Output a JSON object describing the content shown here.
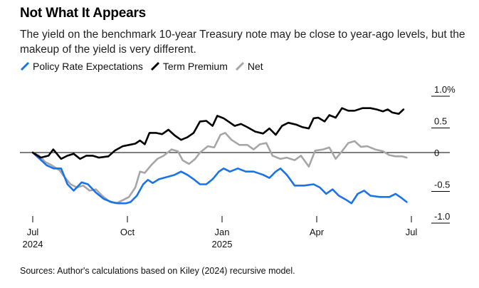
{
  "title": "Not What It Appears",
  "subtitle": "The yield on the benchmark 10-year Treasury note may be close to year-ago levels, but the makeup of the yield is very different.",
  "source": "Sources: Author's calculations based on Kiley (2024) recursive model.",
  "colors": {
    "policy": "#1a73e8",
    "term": "#000000",
    "net": "#a6a6a6"
  },
  "chart_data": {
    "type": "line",
    "x_unit": "month index (0 = Jul 2024)",
    "ylim": [
      -1.1,
      1.1
    ],
    "y_ticks": [
      {
        "value": 1.0,
        "label": "1.0%"
      },
      {
        "value": 0.5,
        "label": "0.5"
      },
      {
        "value": 0,
        "label": "0"
      },
      {
        "value": -0.5,
        "label": "-0.5"
      },
      {
        "value": -1.0,
        "label": "-1.0"
      }
    ],
    "x_ticks": [
      {
        "value": 0,
        "label": "Jul",
        "sublabel": "2024"
      },
      {
        "value": 3,
        "label": "Oct",
        "sublabel": ""
      },
      {
        "value": 6,
        "label": "Jan",
        "sublabel": "2025"
      },
      {
        "value": 9,
        "label": "Apr",
        "sublabel": ""
      },
      {
        "value": 12,
        "label": "Jul",
        "sublabel": ""
      }
    ],
    "legend_position": "top-left",
    "series": [
      {
        "name": "Policy Rate Expectations",
        "color_key": "policy",
        "points": [
          [
            0,
            0
          ],
          [
            0.22,
            -0.1
          ],
          [
            0.44,
            -0.2
          ],
          [
            0.66,
            -0.25
          ],
          [
            0.9,
            -0.25
          ],
          [
            1.1,
            -0.5
          ],
          [
            1.3,
            -0.6
          ],
          [
            1.55,
            -0.47
          ],
          [
            1.75,
            -0.5
          ],
          [
            2.0,
            -0.63
          ],
          [
            2.25,
            -0.73
          ],
          [
            2.5,
            -0.78
          ],
          [
            2.7,
            -0.8
          ],
          [
            2.95,
            -0.8
          ],
          [
            3.1,
            -0.78
          ],
          [
            3.3,
            -0.68
          ],
          [
            3.5,
            -0.5
          ],
          [
            3.65,
            -0.43
          ],
          [
            3.8,
            -0.48
          ],
          [
            4.0,
            -0.42
          ],
          [
            4.3,
            -0.38
          ],
          [
            4.5,
            -0.35
          ],
          [
            4.7,
            -0.3
          ],
          [
            4.9,
            -0.35
          ],
          [
            5.1,
            -0.42
          ],
          [
            5.3,
            -0.5
          ],
          [
            5.5,
            -0.5
          ],
          [
            5.7,
            -0.42
          ],
          [
            5.9,
            -0.3
          ],
          [
            6.05,
            -0.25
          ],
          [
            6.25,
            -0.3
          ],
          [
            6.5,
            -0.25
          ],
          [
            6.75,
            -0.3
          ],
          [
            7.0,
            -0.3
          ],
          [
            7.3,
            -0.35
          ],
          [
            7.5,
            -0.4
          ],
          [
            7.7,
            -0.3
          ],
          [
            7.85,
            -0.25
          ],
          [
            8.05,
            -0.35
          ],
          [
            8.3,
            -0.52
          ],
          [
            8.6,
            -0.52
          ],
          [
            8.9,
            -0.5
          ],
          [
            9.1,
            -0.55
          ],
          [
            9.3,
            -0.65
          ],
          [
            9.5,
            -0.58
          ],
          [
            9.7,
            -0.68
          ],
          [
            9.95,
            -0.75
          ],
          [
            10.1,
            -0.8
          ],
          [
            10.3,
            -0.65
          ],
          [
            10.5,
            -0.6
          ],
          [
            10.7,
            -0.68
          ],
          [
            11.0,
            -0.7
          ],
          [
            11.3,
            -0.7
          ],
          [
            11.5,
            -0.65
          ],
          [
            11.7,
            -0.72
          ],
          [
            11.85,
            -0.78
          ]
        ]
      },
      {
        "name": "Term Premium",
        "color_key": "term",
        "points": [
          [
            0,
            0
          ],
          [
            0.25,
            -0.08
          ],
          [
            0.5,
            -0.05
          ],
          [
            0.65,
            0.05
          ],
          [
            0.9,
            -0.1
          ],
          [
            1.1,
            -0.05
          ],
          [
            1.3,
            -0.02
          ],
          [
            1.5,
            -0.1
          ],
          [
            1.7,
            -0.05
          ],
          [
            1.9,
            -0.05
          ],
          [
            2.1,
            -0.08
          ],
          [
            2.4,
            -0.06
          ],
          [
            2.6,
            0.03
          ],
          [
            2.85,
            0.1
          ],
          [
            3.05,
            0.12
          ],
          [
            3.25,
            0.14
          ],
          [
            3.4,
            0.19
          ],
          [
            3.55,
            0.13
          ],
          [
            3.7,
            0.31
          ],
          [
            3.9,
            0.31
          ],
          [
            4.1,
            0.29
          ],
          [
            4.3,
            0.36
          ],
          [
            4.5,
            0.27
          ],
          [
            4.7,
            0.2
          ],
          [
            4.9,
            0.24
          ],
          [
            5.1,
            0.31
          ],
          [
            5.3,
            0.49
          ],
          [
            5.5,
            0.5
          ],
          [
            5.7,
            0.42
          ],
          [
            5.85,
            0.58
          ],
          [
            6.05,
            0.54
          ],
          [
            6.2,
            0.49
          ],
          [
            6.4,
            0.42
          ],
          [
            6.6,
            0.45
          ],
          [
            6.8,
            0.4
          ],
          [
            7.05,
            0.33
          ],
          [
            7.3,
            0.3
          ],
          [
            7.5,
            0.38
          ],
          [
            7.7,
            0.28
          ],
          [
            7.9,
            0.42
          ],
          [
            8.1,
            0.47
          ],
          [
            8.35,
            0.44
          ],
          [
            8.55,
            0.4
          ],
          [
            8.75,
            0.38
          ],
          [
            8.9,
            0.54
          ],
          [
            9.05,
            0.55
          ],
          [
            9.25,
            0.49
          ],
          [
            9.4,
            0.59
          ],
          [
            9.6,
            0.55
          ],
          [
            9.8,
            0.7
          ],
          [
            10.0,
            0.66
          ],
          [
            10.2,
            0.66
          ],
          [
            10.45,
            0.7
          ],
          [
            10.7,
            0.7
          ],
          [
            10.9,
            0.68
          ],
          [
            11.1,
            0.65
          ],
          [
            11.25,
            0.68
          ],
          [
            11.4,
            0.63
          ],
          [
            11.6,
            0.61
          ],
          [
            11.75,
            0.68
          ]
        ]
      },
      {
        "name": "Net",
        "color_key": "net",
        "points": [
          [
            0,
            0
          ],
          [
            0.2,
            -0.05
          ],
          [
            0.4,
            -0.15
          ],
          [
            0.6,
            -0.2
          ],
          [
            0.85,
            -0.28
          ],
          [
            1.0,
            -0.38
          ],
          [
            1.2,
            -0.5
          ],
          [
            1.4,
            -0.55
          ],
          [
            1.6,
            -0.52
          ],
          [
            1.8,
            -0.6
          ],
          [
            2.0,
            -0.58
          ],
          [
            2.2,
            -0.68
          ],
          [
            2.45,
            -0.78
          ],
          [
            2.65,
            -0.8
          ],
          [
            2.85,
            -0.75
          ],
          [
            3.05,
            -0.7
          ],
          [
            3.25,
            -0.55
          ],
          [
            3.4,
            -0.3
          ],
          [
            3.55,
            -0.32
          ],
          [
            3.75,
            -0.2
          ],
          [
            3.95,
            -0.1
          ],
          [
            4.15,
            -0.05
          ],
          [
            4.4,
            0.05
          ],
          [
            4.6,
            0.02
          ],
          [
            4.75,
            -0.12
          ],
          [
            4.95,
            -0.18
          ],
          [
            5.15,
            -0.1
          ],
          [
            5.3,
            0.0
          ],
          [
            5.55,
            0.1
          ],
          [
            5.75,
            0.08
          ],
          [
            5.95,
            0.28
          ],
          [
            6.1,
            0.31
          ],
          [
            6.3,
            0.2
          ],
          [
            6.55,
            0.12
          ],
          [
            6.8,
            0.12
          ],
          [
            7.0,
            0.05
          ],
          [
            7.2,
            0.13
          ],
          [
            7.4,
            0.15
          ],
          [
            7.6,
            -0.05
          ],
          [
            7.85,
            -0.1
          ],
          [
            8.05,
            -0.08
          ],
          [
            8.3,
            -0.12
          ],
          [
            8.5,
            -0.05
          ],
          [
            8.75,
            -0.22
          ],
          [
            8.95,
            0.03
          ],
          [
            9.2,
            0.05
          ],
          [
            9.4,
            0.08
          ],
          [
            9.6,
            -0.1
          ],
          [
            9.8,
            0.02
          ],
          [
            10.0,
            0.15
          ],
          [
            10.2,
            0.18
          ],
          [
            10.4,
            0.09
          ],
          [
            10.6,
            0.1
          ],
          [
            10.85,
            0.05
          ],
          [
            11.1,
            0.02
          ],
          [
            11.3,
            -0.04
          ],
          [
            11.5,
            -0.06
          ],
          [
            11.7,
            -0.06
          ],
          [
            11.85,
            -0.08
          ]
        ]
      }
    ]
  }
}
